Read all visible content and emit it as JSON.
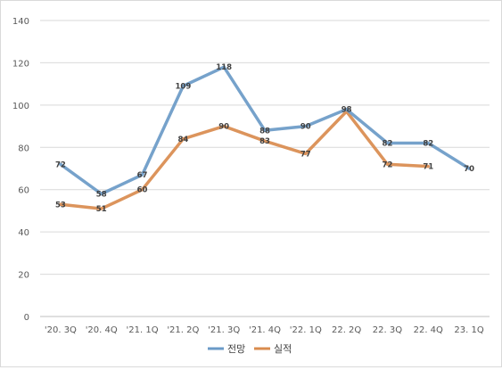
{
  "chart_data": {
    "type": "line",
    "title": "",
    "xlabel": "",
    "ylabel": "",
    "categories": [
      "'20. 3Q",
      "'20. 4Q",
      "'21. 1Q",
      "'21. 2Q",
      "'21. 3Q",
      "'21. 4Q",
      "'22. 1Q",
      "22. 2Q",
      "22. 3Q",
      "22. 4Q",
      "23. 1Q"
    ],
    "series": [
      {
        "name": "전망",
        "color": "#6a9ac7",
        "values": [
          72,
          58,
          67,
          109,
          118,
          88,
          90,
          98,
          82,
          82,
          70
        ]
      },
      {
        "name": "실적",
        "color": "#d98b4e",
        "values": [
          53,
          51,
          60,
          84,
          90,
          83,
          77,
          97,
          72,
          71,
          null
        ]
      }
    ],
    "data_labels": {
      "전망": [
        "72",
        "58",
        "67",
        "109",
        "118",
        "88",
        "90",
        "98",
        "82",
        "82",
        "70"
      ],
      "실적": [
        "53",
        "51",
        "60",
        "84",
        "90",
        "83",
        "77",
        "",
        "72",
        "71",
        ""
      ]
    },
    "ylim": [
      0,
      140
    ],
    "yticks": [
      0,
      20,
      40,
      60,
      80,
      100,
      120,
      140
    ],
    "grid": true,
    "legend": "bottom"
  }
}
